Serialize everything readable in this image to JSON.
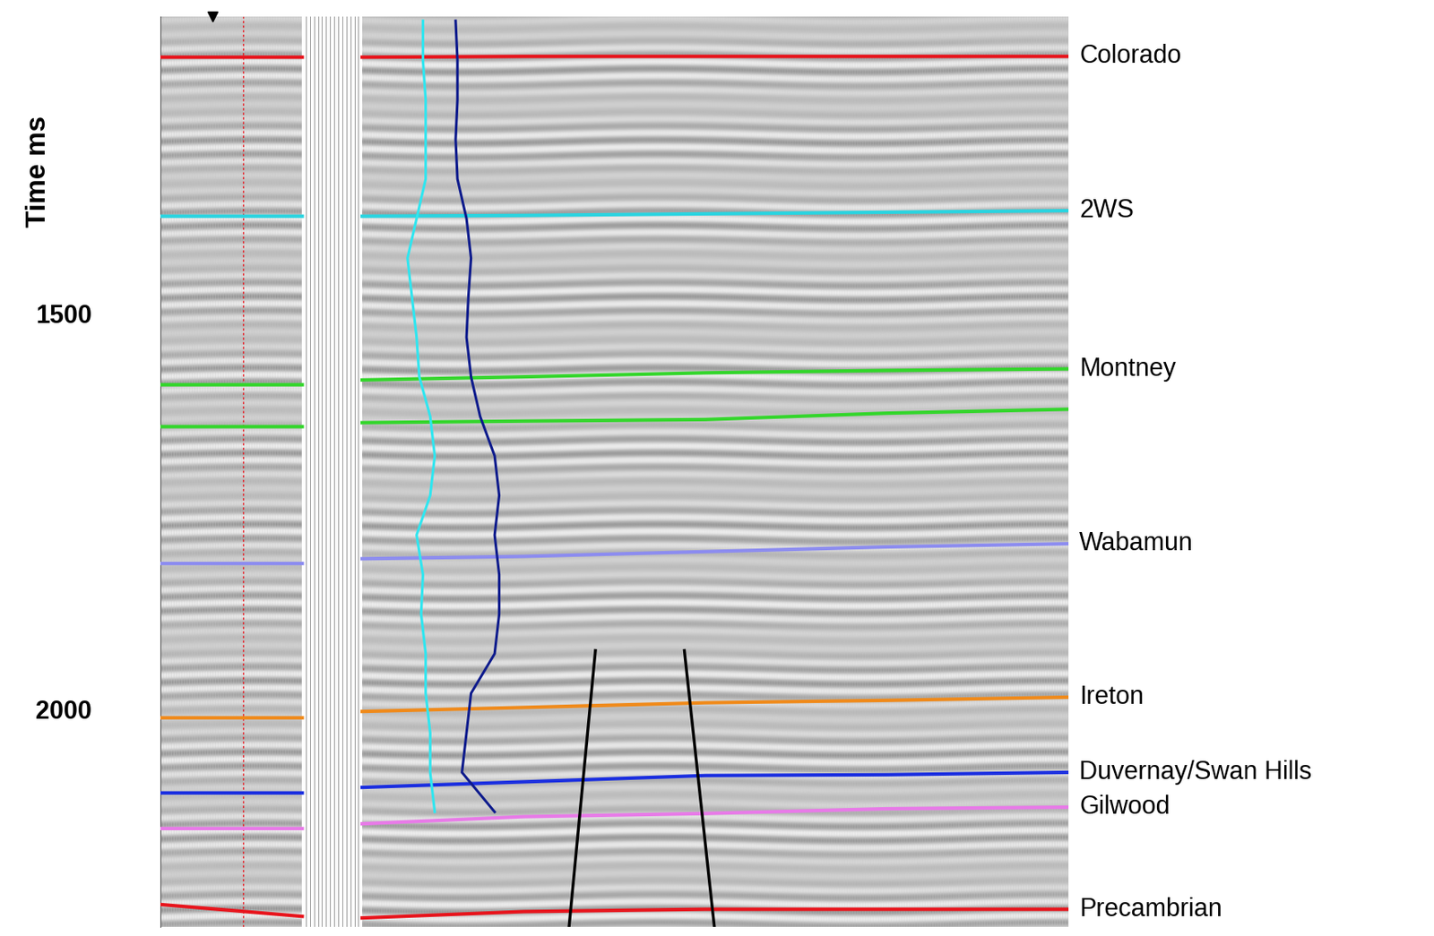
{
  "chart_data": {
    "type": "seismic_section",
    "ylabel": "Time ms",
    "ylim": [
      2275,
      1125
    ],
    "yticks": [
      1500,
      2000
    ],
    "tick_labels": "y",
    "grid": false,
    "x": [
      0,
      15.6,
      18.9,
      22.2,
      40,
      60,
      80,
      100
    ],
    "horizons": [
      {
        "name": "Colorado",
        "color": "#e8141c",
        "values": [
          1176,
          1176,
          null,
          1176,
          1175,
          1175,
          1175,
          1175
        ]
      },
      {
        "name": "2WS",
        "color": "#2ad4e0",
        "values": [
          1377,
          1377,
          null,
          1377,
          1376,
          1374,
          1372,
          1370
        ]
      },
      {
        "name": "Montney",
        "color": "#33d62b",
        "values": [
          1590,
          1590,
          null,
          1584,
          1580,
          1575,
          1572,
          1570
        ],
        "base_values": [
          1643,
          1643,
          null,
          1638,
          1636,
          1634,
          1626,
          1621
        ]
      },
      {
        "name": "Wabamun",
        "color": "#8c8cf0",
        "values": [
          1816,
          1816,
          null,
          1810,
          1807,
          1801,
          1795,
          1791
        ]
      },
      {
        "name": "Ireton",
        "color": "#f08a1a",
        "values": [
          2011,
          2011,
          null,
          2003,
          1998,
          1992,
          1989,
          1985
        ]
      },
      {
        "name": "Duvernay/Swan Hills",
        "color": "#1a2ee0",
        "values": [
          2106,
          2106,
          null,
          2099,
          2092,
          2084,
          2083,
          2080
        ]
      },
      {
        "name": "Gilwood",
        "color": "#e87ae8",
        "values": [
          2151,
          2151,
          null,
          2145,
          2136,
          2132,
          2126,
          2124
        ]
      },
      {
        "name": "Precambrian",
        "color": "#e8141c",
        "values": [
          2247,
          2262,
          null,
          2264,
          2256,
          2253,
          2253,
          2253
        ]
      }
    ],
    "faults": [
      {
        "color": "#000000",
        "x": [
          47.9,
          45.0
        ],
        "time": [
          1926,
          2275
        ]
      },
      {
        "color": "#000000",
        "x": [
          57.7,
          61.0
        ],
        "time": [
          1926,
          2275
        ]
      }
    ],
    "well_location": 9.1,
    "well_logs": [
      {
        "color": "#2ee6f0",
        "time": [
          1130,
          1180,
          1230,
          1280,
          1330,
          1380,
          1430,
          1480,
          1530,
          1580,
          1630,
          1680,
          1730,
          1780,
          1830,
          1880,
          1930,
          1980,
          2030,
          2080,
          2130
        ],
        "values": [
          28.9,
          28.9,
          29.2,
          29.2,
          29.2,
          28.2,
          27.2,
          27.7,
          28.2,
          28.5,
          29.7,
          30.2,
          29.7,
          28.2,
          28.9,
          28.7,
          29.2,
          29.2,
          29.7,
          29.7,
          30.2
        ]
      },
      {
        "color": "#0d1a8c",
        "time": [
          1130,
          1180,
          1230,
          1280,
          1330,
          1380,
          1430,
          1480,
          1530,
          1580,
          1630,
          1680,
          1730,
          1780,
          1830,
          1880,
          1930,
          1980,
          2030,
          2080,
          2130
        ],
        "values": [
          32.5,
          32.7,
          32.7,
          32.5,
          32.7,
          33.7,
          34.2,
          33.9,
          33.7,
          34.2,
          35.2,
          36.8,
          37.3,
          36.8,
          37.3,
          37.3,
          36.8,
          34.2,
          33.7,
          33.2,
          36.8
        ]
      }
    ]
  }
}
